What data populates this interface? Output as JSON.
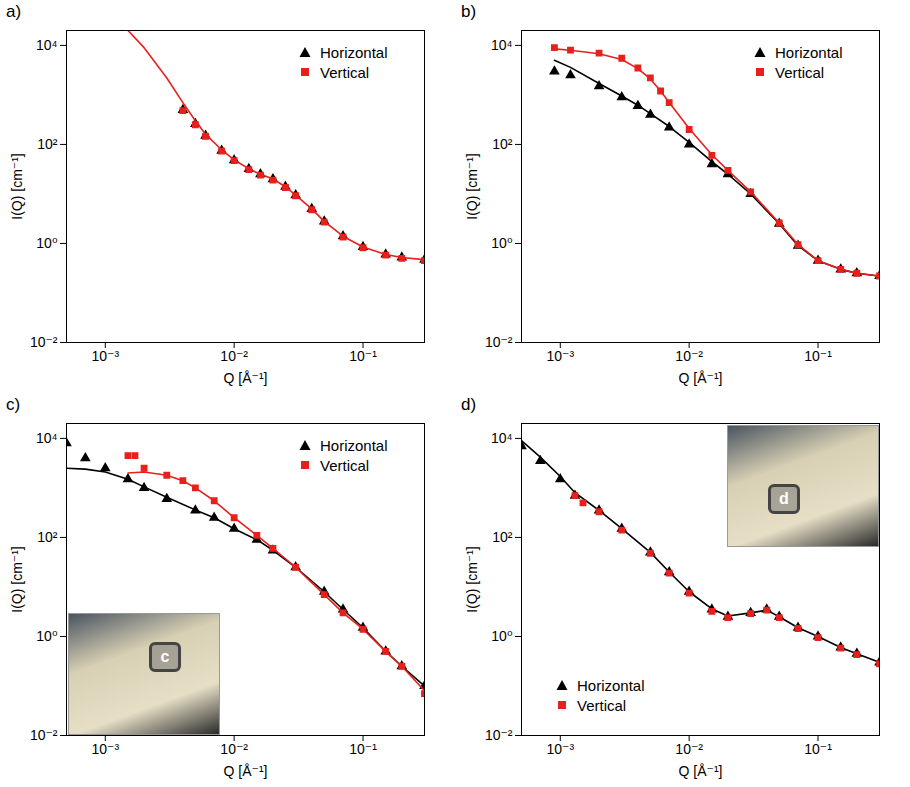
{
  "chart_data": [
    {
      "type": "scatter",
      "title": "a)",
      "x_label": "Q [Å⁻¹]",
      "y_label": "I(Q) [cm⁻¹]",
      "log": true,
      "grid": false,
      "legend": "upper right",
      "xlim": [
        0.0005,
        0.3
      ],
      "ylim": [
        0.01,
        20000
      ],
      "xticks": [
        {
          "value": 0.001,
          "label": "10⁻³"
        },
        {
          "value": 0.01,
          "label": "10⁻²"
        },
        {
          "value": 0.1,
          "label": "10⁻¹"
        }
      ],
      "yticks": [
        {
          "value": 0.01,
          "label": "10⁻²"
        },
        {
          "value": 1,
          "label": "10⁰"
        },
        {
          "value": 100,
          "label": "10²"
        },
        {
          "value": 10000,
          "label": "10⁴"
        }
      ],
      "series": [
        {
          "name": "Horizontal",
          "color": "#000000",
          "marker": "triangle",
          "x": [
            0.004,
            0.005,
            0.006,
            0.008,
            0.01,
            0.013,
            0.016,
            0.02,
            0.025,
            0.03,
            0.04,
            0.05,
            0.07,
            0.1,
            0.15,
            0.2,
            0.3
          ],
          "values": [
            500,
            260,
            150,
            75,
            48,
            32,
            25,
            20,
            14,
            9.5,
            5,
            2.8,
            1.4,
            0.85,
            0.6,
            0.52,
            0.47
          ]
        },
        {
          "name": "Vertical",
          "color": "#e8201c",
          "marker": "square",
          "x": [
            0.004,
            0.005,
            0.006,
            0.008,
            0.01,
            0.013,
            0.016,
            0.02,
            0.025,
            0.03,
            0.04,
            0.05,
            0.07,
            0.1,
            0.15,
            0.2,
            0.3
          ],
          "values": [
            480,
            250,
            145,
            73,
            47,
            31,
            24,
            19,
            13.5,
            9.2,
            4.8,
            2.7,
            1.35,
            0.82,
            0.58,
            0.5,
            0.45
          ],
          "fit": {
            "x": [
              0.0015,
              0.002,
              0.003,
              0.004,
              0.005,
              0.006,
              0.008,
              0.01,
              0.013,
              0.016,
              0.02,
              0.025,
              0.03,
              0.04,
              0.05,
              0.07,
              0.1,
              0.15,
              0.2,
              0.3
            ],
            "values": [
              20000,
              9000,
              2200,
              700,
              300,
              160,
              78,
              49,
              32,
              25,
              20,
              14,
              9.5,
              5,
              2.8,
              1.4,
              0.85,
              0.6,
              0.52,
              0.47
            ]
          }
        }
      ]
    },
    {
      "type": "scatter",
      "title": "b)",
      "x_label": "Q [Å⁻¹]",
      "y_label": "I(Q) [cm⁻¹]",
      "log": true,
      "grid": false,
      "legend": "upper right",
      "xlim": [
        0.0005,
        0.3
      ],
      "ylim": [
        0.01,
        20000
      ],
      "xticks": [
        {
          "value": 0.001,
          "label": "10⁻³"
        },
        {
          "value": 0.01,
          "label": "10⁻²"
        },
        {
          "value": 0.1,
          "label": "10⁻¹"
        }
      ],
      "yticks": [
        {
          "value": 0.01,
          "label": "10⁻²"
        },
        {
          "value": 1,
          "label": "10⁰"
        },
        {
          "value": 100,
          "label": "10²"
        },
        {
          "value": 10000,
          "label": "10⁴"
        }
      ],
      "series": [
        {
          "name": "Horizontal",
          "color": "#000000",
          "marker": "triangle",
          "x": [
            0.0009,
            0.0012,
            0.002,
            0.003,
            0.004,
            0.005,
            0.007,
            0.01,
            0.015,
            0.02,
            0.03,
            0.05,
            0.07,
            0.1,
            0.15,
            0.2,
            0.3
          ],
          "values": [
            3000,
            2500,
            1500,
            900,
            600,
            400,
            220,
            100,
            40,
            25,
            10,
            2.5,
            0.9,
            0.45,
            0.3,
            0.25,
            0.22
          ],
          "fit": {
            "x": [
              0.0009,
              0.0012,
              0.002,
              0.003,
              0.004,
              0.005,
              0.007,
              0.01,
              0.015,
              0.02,
              0.03,
              0.05,
              0.07,
              0.1,
              0.15,
              0.2,
              0.3
            ],
            "values": [
              5000,
              3600,
              1700,
              950,
              620,
              420,
              230,
              110,
              45,
              25,
              10,
              2.5,
              0.9,
              0.45,
              0.3,
              0.25,
              0.22
            ]
          }
        },
        {
          "name": "Vertical",
          "color": "#e8201c",
          "marker": "square",
          "x": [
            0.0009,
            0.0012,
            0.002,
            0.003,
            0.004,
            0.005,
            0.006,
            0.007,
            0.01,
            0.015,
            0.02,
            0.03,
            0.05,
            0.07,
            0.1,
            0.15,
            0.2,
            0.3
          ],
          "values": [
            9000,
            8000,
            7000,
            5500,
            3500,
            2200,
            1200,
            700,
            200,
            60,
            30,
            11,
            2.6,
            0.95,
            0.45,
            0.3,
            0.25,
            0.22
          ],
          "fit": {
            "x": [
              0.0009,
              0.0012,
              0.002,
              0.003,
              0.004,
              0.005,
              0.006,
              0.007,
              0.01,
              0.015,
              0.02,
              0.03,
              0.05,
              0.07,
              0.1,
              0.15,
              0.2,
              0.3
            ],
            "values": [
              8500,
              8000,
              6800,
              5200,
              3400,
              2100,
              1200,
              700,
              210,
              62,
              30,
              11,
              2.6,
              0.95,
              0.45,
              0.3,
              0.25,
              0.22
            ]
          }
        }
      ]
    },
    {
      "type": "scatter",
      "title": "c)",
      "x_label": "Q [Å⁻¹]",
      "y_label": "I(Q) [cm⁻¹]",
      "log": true,
      "grid": false,
      "legend": "upper right",
      "annotations": [
        "c"
      ],
      "xlim": [
        0.0005,
        0.3
      ],
      "ylim": [
        0.01,
        20000
      ],
      "xticks": [
        {
          "value": 0.001,
          "label": "10⁻³"
        },
        {
          "value": 0.01,
          "label": "10⁻²"
        },
        {
          "value": 0.1,
          "label": "10⁻¹"
        }
      ],
      "yticks": [
        {
          "value": 0.01,
          "label": "10⁻²"
        },
        {
          "value": 1,
          "label": "10⁰"
        },
        {
          "value": 100,
          "label": "10²"
        },
        {
          "value": 10000,
          "label": "10⁴"
        }
      ],
      "series": [
        {
          "name": "Horizontal",
          "color": "#000000",
          "marker": "triangle",
          "x": [
            0.0005,
            0.0007,
            0.001,
            0.0015,
            0.002,
            0.003,
            0.005,
            0.007,
            0.01,
            0.015,
            0.02,
            0.03,
            0.05,
            0.07,
            0.1,
            0.15,
            0.2,
            0.3
          ],
          "values": [
            8000,
            4000,
            2500,
            1500,
            1000,
            600,
            350,
            250,
            150,
            90,
            55,
            25,
            8,
            3.5,
            1.5,
            0.5,
            0.25,
            0.1
          ],
          "fit": {
            "x": [
              0.0005,
              0.0007,
              0.001,
              0.0015,
              0.002,
              0.003,
              0.005,
              0.007,
              0.01,
              0.015,
              0.02,
              0.03,
              0.05,
              0.07,
              0.1,
              0.15,
              0.2,
              0.3
            ],
            "values": [
              2500,
              2400,
              2100,
              1500,
              1050,
              650,
              360,
              250,
              150,
              90,
              55,
              25,
              8,
              3.5,
              1.5,
              0.5,
              0.25,
              0.1
            ]
          }
        },
        {
          "name": "Vertical",
          "color": "#e8201c",
          "marker": "square",
          "x": [
            0.0015,
            0.0017,
            0.002,
            0.003,
            0.004,
            0.005,
            0.007,
            0.01,
            0.015,
            0.02,
            0.03,
            0.05,
            0.07,
            0.1,
            0.15,
            0.2,
            0.3
          ],
          "values": [
            4500,
            4500,
            2500,
            1800,
            1400,
            1000,
            550,
            250,
            110,
            60,
            25,
            7,
            3,
            1.4,
            0.5,
            0.25,
            0.07
          ],
          "fit": {
            "x": [
              0.0015,
              0.002,
              0.003,
              0.004,
              0.005,
              0.007,
              0.01,
              0.015,
              0.02,
              0.03,
              0.05,
              0.07,
              0.1,
              0.15,
              0.2,
              0.3
            ],
            "values": [
              2000,
              2100,
              1800,
              1400,
              1000,
              550,
              250,
              110,
              60,
              25,
              7,
              3,
              1.4,
              0.5,
              0.25,
              0.08
            ]
          }
        }
      ]
    },
    {
      "type": "scatter",
      "title": "d)",
      "x_label": "Q [Å⁻¹]",
      "y_label": "I(Q) [cm⁻¹]",
      "log": true,
      "grid": false,
      "legend": "lower left",
      "annotations": [
        "d"
      ],
      "xlim": [
        0.0005,
        0.3
      ],
      "ylim": [
        0.01,
        20000
      ],
      "xticks": [
        {
          "value": 0.001,
          "label": "10⁻³"
        },
        {
          "value": 0.01,
          "label": "10⁻²"
        },
        {
          "value": 0.1,
          "label": "10⁻¹"
        }
      ],
      "yticks": [
        {
          "value": 0.01,
          "label": "10⁻²"
        },
        {
          "value": 1,
          "label": "10⁰"
        },
        {
          "value": 100,
          "label": "10²"
        },
        {
          "value": 10000,
          "label": "10⁴"
        }
      ],
      "series": [
        {
          "name": "Horizontal",
          "color": "#000000",
          "marker": "triangle",
          "x": [
            0.0005,
            0.0007,
            0.001,
            0.0013,
            0.002,
            0.003,
            0.005,
            0.007,
            0.01,
            0.015,
            0.02,
            0.03,
            0.04,
            0.05,
            0.07,
            0.1,
            0.15,
            0.2,
            0.3
          ],
          "values": [
            7000,
            3500,
            1500,
            700,
            350,
            150,
            50,
            20,
            8,
            3.5,
            2.5,
            3,
            3.5,
            2.5,
            1.5,
            1,
            0.6,
            0.45,
            0.3
          ],
          "fit": {
            "x": [
              0.0005,
              0.0007,
              0.001,
              0.0013,
              0.002,
              0.003,
              0.005,
              0.007,
              0.01,
              0.015,
              0.02,
              0.03,
              0.04,
              0.05,
              0.07,
              0.1,
              0.15,
              0.2,
              0.3
            ],
            "values": [
              9000,
              4200,
              1700,
              800,
              350,
              150,
              50,
              20,
              8,
              3.6,
              2.6,
              3,
              3.4,
              2.5,
              1.5,
              1,
              0.6,
              0.45,
              0.3
            ]
          }
        },
        {
          "name": "Vertical",
          "color": "#e8201c",
          "marker": "square",
          "x": [
            0.0013,
            0.0015,
            0.002,
            0.003,
            0.005,
            0.007,
            0.01,
            0.015,
            0.02,
            0.03,
            0.04,
            0.05,
            0.07,
            0.1,
            0.15,
            0.2,
            0.3
          ],
          "values": [
            700,
            500,
            330,
            140,
            48,
            19,
            7.5,
            3.2,
            2.4,
            2.9,
            3.4,
            2.4,
            1.45,
            0.95,
            0.58,
            0.43,
            0.28
          ]
        }
      ]
    }
  ]
}
